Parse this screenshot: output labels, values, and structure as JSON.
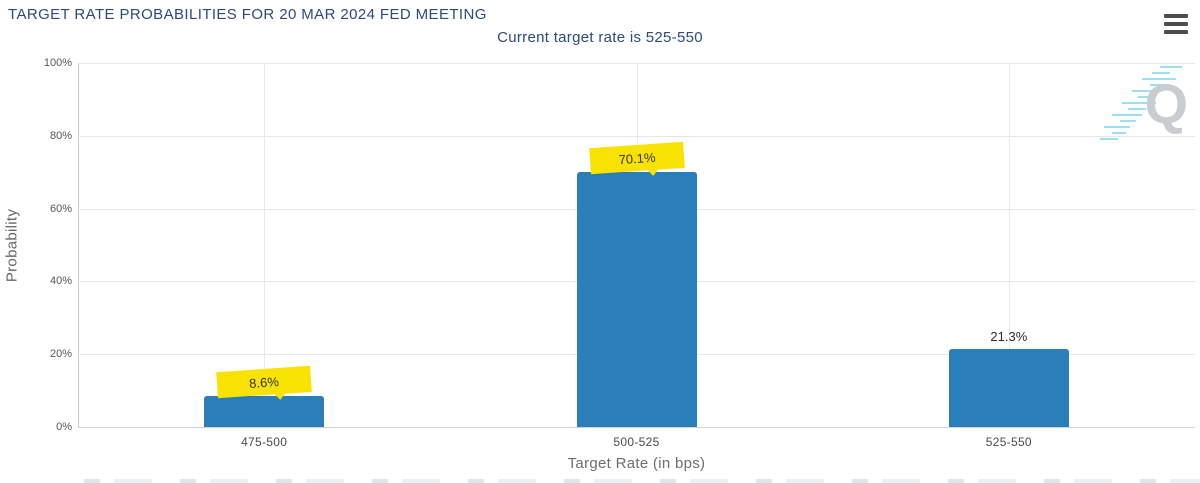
{
  "header": {
    "title": "TARGET RATE PROBABILITIES FOR 20 MAR 2024 FED MEETING",
    "subtitle": "Current target rate is 525-550"
  },
  "menu": {
    "icon": "hamburger-menu-icon"
  },
  "watermark": {
    "letter": "Q",
    "icon": "quikstrike-logo-watermark"
  },
  "chart_data": {
    "type": "bar",
    "title": "TARGET RATE PROBABILITIES FOR 20 MAR 2024 FED MEETING",
    "subtitle": "Current target rate is 525-550",
    "categories": [
      "475-500",
      "500-525",
      "525-550"
    ],
    "values": [
      8.6,
      70.1,
      21.3
    ],
    "value_labels": [
      "8.6%",
      "70.1%",
      "21.3%"
    ],
    "value_label_highlighted": [
      true,
      true,
      false
    ],
    "xlabel": "Target Rate (in bps)",
    "ylabel": "Probability",
    "ylim": [
      0,
      100
    ],
    "yticks": [
      0,
      20,
      40,
      60,
      80,
      100
    ],
    "ytick_labels": [
      "0%",
      "20%",
      "40%",
      "60%",
      "80%",
      "100%"
    ],
    "grid": true,
    "legend": "none",
    "bar_color": "#2a7fb8",
    "highlight_color": "#f7e203",
    "title_color": "#2c4a7c"
  }
}
